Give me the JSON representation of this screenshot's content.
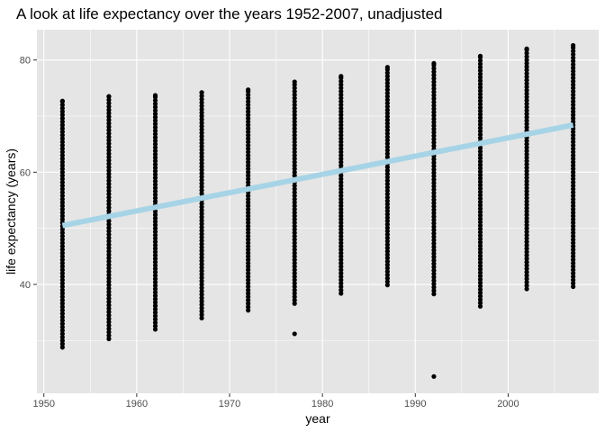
{
  "chart_data": {
    "type": "scatter",
    "title": "A look at life expectancy over the years 1952-2007, unadjusted",
    "xlabel": "year",
    "ylabel": "life expectancy (years)",
    "xlim": [
      1949.25,
      2009.75
    ],
    "ylim": [
      20.6,
      85.4
    ],
    "x_ticks": [
      1950,
      1960,
      1970,
      1980,
      1990,
      2000
    ],
    "x_tick_labels": [
      "1950",
      "1960",
      "1970",
      "1980",
      "1990",
      "2000"
    ],
    "y_ticks": [
      40,
      60,
      80
    ],
    "y_tick_labels": [
      "40",
      "60",
      "80"
    ],
    "grid": true,
    "background": "#e5e5e5",
    "grid_color": "#ffffff",
    "point_color": "#000000",
    "line_color": "#a6d4e6",
    "years": [
      1952,
      1957,
      1962,
      1967,
      1972,
      1977,
      1982,
      1987,
      1992,
      1997,
      2002,
      2007
    ],
    "year_ranges": [
      {
        "x": 1952,
        "min": 28.8,
        "max": 72.7
      },
      {
        "x": 1957,
        "min": 30.3,
        "max": 73.5
      },
      {
        "x": 1962,
        "min": 32.0,
        "max": 73.7
      },
      {
        "x": 1967,
        "min": 34.0,
        "max": 74.2
      },
      {
        "x": 1972,
        "min": 35.4,
        "max": 74.7
      },
      {
        "x": 1977,
        "min": 36.6,
        "max": 76.1
      },
      {
        "x": 1982,
        "min": 38.4,
        "max": 77.1
      },
      {
        "x": 1987,
        "min": 39.9,
        "max": 78.7
      },
      {
        "x": 1992,
        "min": 38.3,
        "max": 79.4
      },
      {
        "x": 1997,
        "min": 36.1,
        "max": 80.7
      },
      {
        "x": 2002,
        "min": 39.2,
        "max": 82.0
      },
      {
        "x": 2007,
        "min": 39.6,
        "max": 82.6
      }
    ],
    "outliers": [
      {
        "x": 1977,
        "y": 31.2
      },
      {
        "x": 1992,
        "y": 23.6
      }
    ],
    "trend_line": {
      "x": [
        1952,
        2007
      ],
      "y": [
        50.5,
        68.4
      ]
    }
  }
}
